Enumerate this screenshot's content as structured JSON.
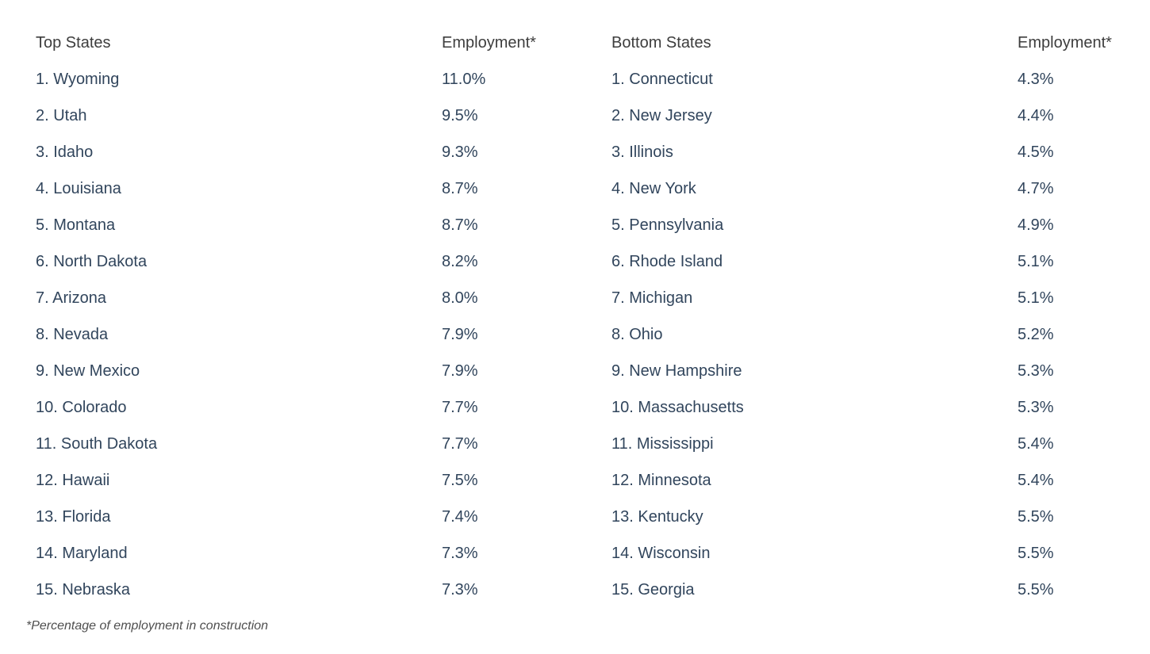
{
  "colors": {
    "background": "#ffffff",
    "header_text": "#3d3d3d",
    "row_text": "#31455c",
    "footnote_text": "#4f4f4f"
  },
  "chart_data": {
    "type": "table",
    "footnote": "*Percentage of employment in construction",
    "value_unit": "percent of state employment in construction",
    "tables": [
      {
        "name_header": "Top States",
        "value_header": "Employment*",
        "rows": [
          {
            "rank": 1,
            "state": "Wyoming",
            "label": "1. Wyoming",
            "value": "11.0%",
            "value_num": 11.0
          },
          {
            "rank": 2,
            "state": "Utah",
            "label": "2. Utah",
            "value": "9.5%",
            "value_num": 9.5
          },
          {
            "rank": 3,
            "state": "Idaho",
            "label": "3. Idaho",
            "value": "9.3%",
            "value_num": 9.3
          },
          {
            "rank": 4,
            "state": "Louisiana",
            "label": "4. Louisiana",
            "value": "8.7%",
            "value_num": 8.7
          },
          {
            "rank": 5,
            "state": "Montana",
            "label": "5. Montana",
            "value": "8.7%",
            "value_num": 8.7
          },
          {
            "rank": 6,
            "state": "North Dakota",
            "label": "6. North Dakota",
            "value": "8.2%",
            "value_num": 8.2
          },
          {
            "rank": 7,
            "state": "Arizona",
            "label": "7. Arizona",
            "value": "8.0%",
            "value_num": 8.0
          },
          {
            "rank": 8,
            "state": "Nevada",
            "label": "8. Nevada",
            "value": "7.9%",
            "value_num": 7.9
          },
          {
            "rank": 9,
            "state": "New Mexico",
            "label": "9. New Mexico",
            "value": "7.9%",
            "value_num": 7.9
          },
          {
            "rank": 10,
            "state": "Colorado",
            "label": "10. Colorado",
            "value": "7.7%",
            "value_num": 7.7
          },
          {
            "rank": 11,
            "state": "South Dakota",
            "label": "11. South Dakota",
            "value": "7.7%",
            "value_num": 7.7
          },
          {
            "rank": 12,
            "state": "Hawaii",
            "label": "12. Hawaii",
            "value": "7.5%",
            "value_num": 7.5
          },
          {
            "rank": 13,
            "state": "Florida",
            "label": "13. Florida",
            "value": "7.4%",
            "value_num": 7.4
          },
          {
            "rank": 14,
            "state": "Maryland",
            "label": "14. Maryland",
            "value": "7.3%",
            "value_num": 7.3
          },
          {
            "rank": 15,
            "state": "Nebraska",
            "label": "15. Nebraska",
            "value": "7.3%",
            "value_num": 7.3
          }
        ]
      },
      {
        "name_header": "Bottom States",
        "value_header": "Employment*",
        "rows": [
          {
            "rank": 1,
            "state": "Connecticut",
            "label": "1. Connecticut",
            "value": "4.3%",
            "value_num": 4.3
          },
          {
            "rank": 2,
            "state": "New Jersey",
            "label": "2. New Jersey",
            "value": "4.4%",
            "value_num": 4.4
          },
          {
            "rank": 3,
            "state": "Illinois",
            "label": "3. Illinois",
            "value": "4.5%",
            "value_num": 4.5
          },
          {
            "rank": 4,
            "state": "New York",
            "label": "4. New York",
            "value": "4.7%",
            "value_num": 4.7
          },
          {
            "rank": 5,
            "state": "Pennsylvania",
            "label": "5. Pennsylvania",
            "value": "4.9%",
            "value_num": 4.9
          },
          {
            "rank": 6,
            "state": "Rhode Island",
            "label": "6. Rhode Island",
            "value": "5.1%",
            "value_num": 5.1
          },
          {
            "rank": 7,
            "state": "Michigan",
            "label": "7. Michigan",
            "value": "5.1%",
            "value_num": 5.1
          },
          {
            "rank": 8,
            "state": "Ohio",
            "label": "8. Ohio",
            "value": "5.2%",
            "value_num": 5.2
          },
          {
            "rank": 9,
            "state": "New Hampshire",
            "label": "9. New Hampshire",
            "value": "5.3%",
            "value_num": 5.3
          },
          {
            "rank": 10,
            "state": "Massachusetts",
            "label": "10. Massachusetts",
            "value": "5.3%",
            "value_num": 5.3
          },
          {
            "rank": 11,
            "state": "Mississippi",
            "label": "11. Mississippi",
            "value": "5.4%",
            "value_num": 5.4
          },
          {
            "rank": 12,
            "state": "Minnesota",
            "label": "12. Minnesota",
            "value": "5.4%",
            "value_num": 5.4
          },
          {
            "rank": 13,
            "state": "Kentucky",
            "label": "13. Kentucky",
            "value": "5.5%",
            "value_num": 5.5
          },
          {
            "rank": 14,
            "state": "Wisconsin",
            "label": "14. Wisconsin",
            "value": "5.5%",
            "value_num": 5.5
          },
          {
            "rank": 15,
            "state": "Georgia",
            "label": "15. Georgia",
            "value": "5.5%",
            "value_num": 5.5
          }
        ]
      }
    ]
  }
}
